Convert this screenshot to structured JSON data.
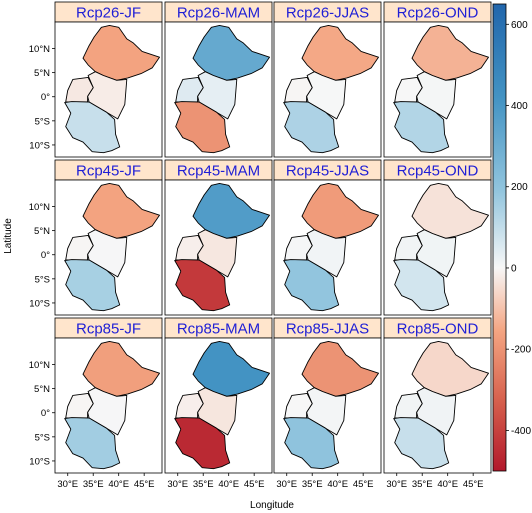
{
  "figure": {
    "x_axis_title": "Longitude",
    "y_axis_title": "Latitude",
    "lon_ticks": [
      "30°E",
      "35°E",
      "40°E",
      "45°E"
    ],
    "lat_ticks": [
      "10°N",
      "5°N",
      "0°",
      "5°S",
      "10°S"
    ]
  },
  "panels": [
    {
      "id": "rcp26-jf",
      "title": "Rcp26-JF",
      "north": -160,
      "south": 90
    },
    {
      "id": "rcp26-mam",
      "title": "Rcp26-MAM",
      "north": 320,
      "south": -200
    },
    {
      "id": "rcp26-jjas",
      "title": "Rcp26-JJAS",
      "north": -150,
      "south": 140
    },
    {
      "id": "rcp26-ond",
      "title": "Rcp26-OND",
      "north": -130,
      "south": 130
    },
    {
      "id": "rcp45-jf",
      "title": "Rcp45-JF",
      "north": -160,
      "south": 150
    },
    {
      "id": "rcp45-mam",
      "title": "Rcp45-MAM",
      "north": 380,
      "south": -420
    },
    {
      "id": "rcp45-jjas",
      "title": "Rcp45-JJAS",
      "north": -180,
      "south": 190
    },
    {
      "id": "rcp45-ond",
      "title": "Rcp45-OND",
      "north": -40,
      "south": 70
    },
    {
      "id": "rcp85-jf",
      "title": "Rcp85-JF",
      "north": -170,
      "south": 160
    },
    {
      "id": "rcp85-mam",
      "title": "Rcp85-MAM",
      "north": 420,
      "south": -460
    },
    {
      "id": "rcp85-jjas",
      "title": "Rcp85-JJAS",
      "north": -200,
      "south": 200
    },
    {
      "id": "rcp85-ond",
      "title": "Rcp85-OND",
      "north": -60,
      "south": 90
    }
  ],
  "legend": {
    "min": -500,
    "max": 650,
    "ticks": [
      -400,
      -200,
      0,
      200,
      400,
      600
    ],
    "tick_labels": [
      "-400",
      "-200",
      "0",
      "200",
      "400",
      "600"
    ],
    "colors": {
      "dark_red": "#b2182b",
      "red": "#d6604d",
      "light_red": "#f4a582",
      "white": "#f7f7f7",
      "light_blue": "#92c5de",
      "blue": "#4393c3",
      "dark_blue": "#2166ac"
    }
  },
  "colors": {
    "strip_fill": "#ffe5cc",
    "strip_text": "#1f1fd6",
    "border": "#000000",
    "country_outline": "#000000"
  }
}
